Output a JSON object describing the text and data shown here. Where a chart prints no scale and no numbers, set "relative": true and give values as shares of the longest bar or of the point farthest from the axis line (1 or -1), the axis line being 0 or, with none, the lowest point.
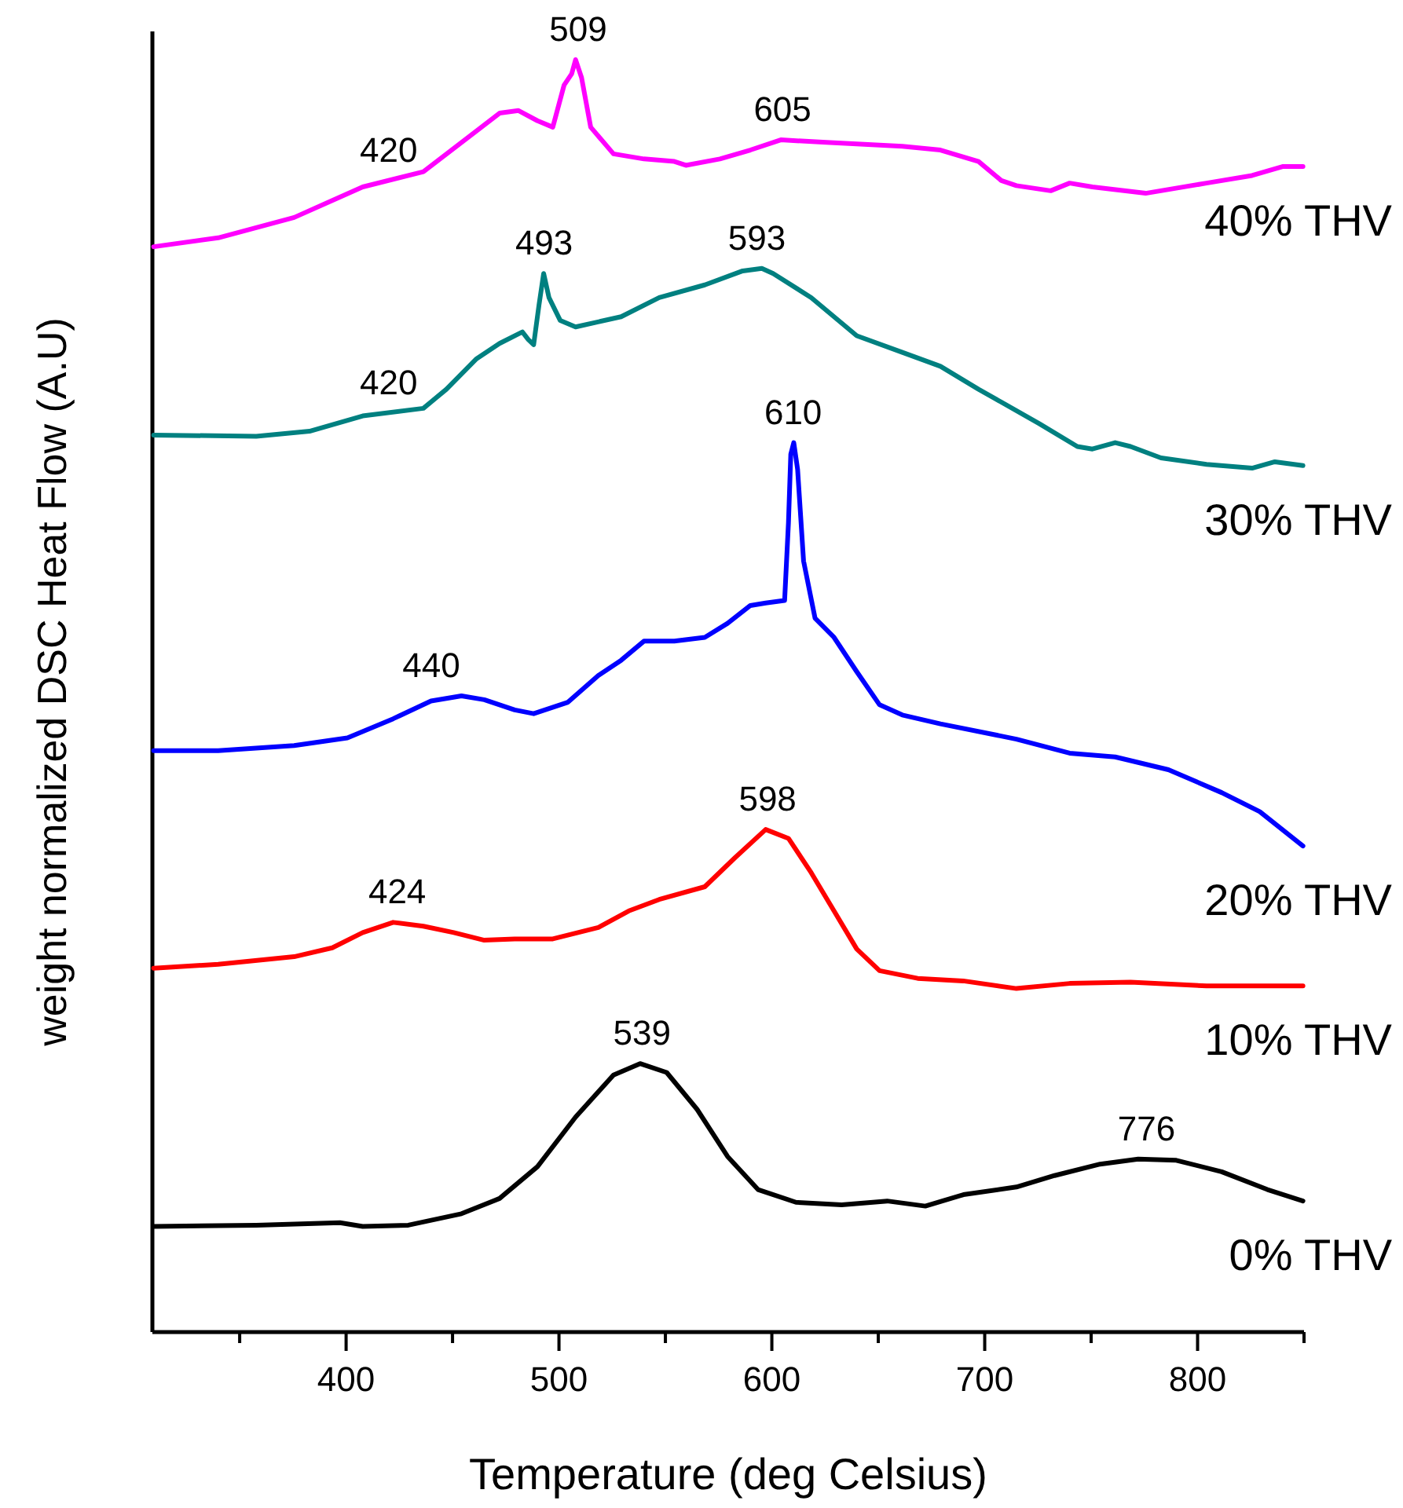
{
  "chart_data": {
    "type": "line",
    "relative": true,
    "xlabel": "Temperature (deg Celsius)",
    "ylabel": "weight normalized DSC Heat Flow (A.U)",
    "xlim": [
      309,
      850
    ],
    "xticks": [
      {
        "value": 350,
        "label": null
      },
      400,
      {
        "value": 450,
        "label": null
      },
      500,
      {
        "value": 550,
        "label": null
      },
      600,
      {
        "value": 650,
        "label": null
      },
      700,
      {
        "value": 750,
        "label": null
      },
      800,
      {
        "value": 850,
        "label": null
      }
    ],
    "series": [
      {
        "name": "0% THV",
        "color": "#000000",
        "x": [
          309.6,
          357.8,
          397.1,
          407.8,
          429.2,
          454.2,
          472.1,
          489.9,
          507.8,
          525.6,
          538.1,
          550.6,
          564.9,
          579.2,
          593.5,
          611.3,
          632.8,
          654.2,
          672.1,
          690.0,
          714.9,
          732.8,
          754.2,
          772.1,
          790.0,
          811.3,
          832.8,
          849.5
        ],
        "values": [
          0.083,
          0.084,
          0.086,
          0.083,
          0.084,
          0.093,
          0.105,
          0.13,
          0.169,
          0.202,
          0.211,
          0.204,
          0.175,
          0.138,
          0.112,
          0.102,
          0.1,
          0.103,
          0.099,
          0.108,
          0.114,
          0.123,
          0.132,
          0.136,
          0.135,
          0.126,
          0.112,
          0.103
        ]
      },
      {
        "name": "10% THV",
        "color": "#ff0000",
        "x": [
          309.6,
          339.9,
          375.6,
          393.5,
          407.8,
          422.1,
          436.3,
          450.6,
          464.9,
          479.2,
          497.1,
          518.5,
          532.8,
          547.1,
          568.5,
          582.8,
          597.1,
          607.8,
          618.5,
          629.2,
          639.9,
          650.6,
          668.5,
          689.9,
          714.9,
          739.9,
          768.5,
          804.2,
          849.5
        ],
        "values": [
          0.286,
          0.289,
          0.295,
          0.302,
          0.314,
          0.322,
          0.319,
          0.314,
          0.308,
          0.309,
          0.309,
          0.318,
          0.331,
          0.34,
          0.35,
          0.373,
          0.395,
          0.388,
          0.361,
          0.331,
          0.301,
          0.284,
          0.278,
          0.276,
          0.27,
          0.274,
          0.275,
          0.272,
          0.272
        ]
      },
      {
        "name": "20% THV",
        "color": "#0000ff",
        "x": [
          309.6,
          339.9,
          375.6,
          400.6,
          422.1,
          439.9,
          454.2,
          464.9,
          479.2,
          488.1,
          504.2,
          518.5,
          529.2,
          539.9,
          554.2,
          568.5,
          579.2,
          589.9,
          597.1,
          606.0,
          607.8,
          608.9,
          610.3,
          612.1,
          614.9,
          620.3,
          629.2,
          639.9,
          650.6,
          661.3,
          679.2,
          714.9,
          739.9,
          761.3,
          786.3,
          811.3,
          829.2,
          849.5
        ],
        "values": [
          0.457,
          0.457,
          0.461,
          0.467,
          0.482,
          0.496,
          0.5,
          0.497,
          0.489,
          0.486,
          0.495,
          0.516,
          0.528,
          0.543,
          0.543,
          0.546,
          0.557,
          0.571,
          0.573,
          0.575,
          0.636,
          0.69,
          0.699,
          0.678,
          0.606,
          0.561,
          0.546,
          0.519,
          0.493,
          0.485,
          0.478,
          0.466,
          0.455,
          0.452,
          0.442,
          0.424,
          0.409,
          0.382
        ]
      },
      {
        "name": "30% THV",
        "color": "#008080",
        "x": [
          309.6,
          357.8,
          382.8,
          407.8,
          436.3,
          447.1,
          461.3,
          472.1,
          482.8,
          485.6,
          488.1,
          490.6,
          492.8,
          495.3,
          500.6,
          507.8,
          529.2,
          547.1,
          568.5,
          586.3,
          595.3,
          600.6,
          618.5,
          639.9,
          661.3,
          679.2,
          697.1,
          725.6,
          743.5,
          750.6,
          761.3,
          768.5,
          782.8,
          804.2,
          825.6,
          836.3,
          849.5
        ],
        "values": [
          0.705,
          0.704,
          0.708,
          0.72,
          0.726,
          0.741,
          0.765,
          0.777,
          0.786,
          0.78,
          0.776,
          0.807,
          0.832,
          0.813,
          0.795,
          0.79,
          0.798,
          0.813,
          0.823,
          0.834,
          0.836,
          0.832,
          0.813,
          0.783,
          0.77,
          0.759,
          0.741,
          0.714,
          0.696,
          0.694,
          0.699,
          0.696,
          0.687,
          0.682,
          0.679,
          0.684,
          0.681
        ]
      },
      {
        "name": "40% THV",
        "color": "#ff00ff",
        "x": [
          309.6,
          339.9,
          375.6,
          407.8,
          436.3,
          461.3,
          472.1,
          481.0,
          489.9,
          497.1,
          502.4,
          506.0,
          507.8,
          510.6,
          514.9,
          525.6,
          539.9,
          554.2,
          559.6,
          575.6,
          589.9,
          604.2,
          625.6,
          661.3,
          679.2,
          697.1,
          707.8,
          714.9,
          731.0,
          739.9,
          750.6,
          775.6,
          804.2,
          825.6,
          839.9,
          849.5
        ],
        "values": [
          0.853,
          0.86,
          0.876,
          0.9,
          0.912,
          0.944,
          0.958,
          0.96,
          0.952,
          0.947,
          0.98,
          0.989,
          1.0,
          0.986,
          0.947,
          0.926,
          0.922,
          0.92,
          0.917,
          0.922,
          0.929,
          0.937,
          0.935,
          0.932,
          0.929,
          0.92,
          0.905,
          0.901,
          0.897,
          0.903,
          0.9,
          0.895,
          0.903,
          0.909,
          0.916,
          0.916
        ]
      }
    ],
    "annotations": [
      {
        "text": "539",
        "x": 539,
        "y": 0.211
      },
      {
        "text": "776",
        "x": 776,
        "y": 0.136
      },
      {
        "text": "424",
        "x": 424,
        "y": 0.322
      },
      {
        "text": "598",
        "x": 598,
        "y": 0.395
      },
      {
        "text": "440",
        "x": 440,
        "y": 0.5
      },
      {
        "text": "610",
        "x": 610,
        "y": 0.699
      },
      {
        "text": "420",
        "x": 420,
        "y": 0.722
      },
      {
        "text": "493",
        "x": 493,
        "y": 0.832
      },
      {
        "text": "593",
        "x": 593,
        "y": 0.836
      },
      {
        "text": "420",
        "x": 420,
        "y": 0.905
      },
      {
        "text": "509",
        "x": 509,
        "y": 1.0
      },
      {
        "text": "605",
        "x": 605,
        "y": 0.937
      }
    ]
  }
}
